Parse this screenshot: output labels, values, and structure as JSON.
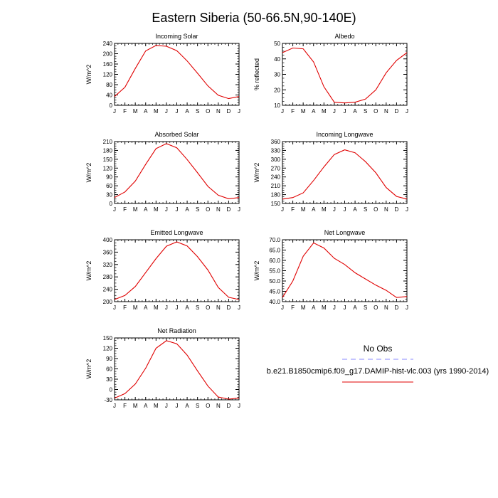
{
  "figure": {
    "title": "Eastern Siberia (50-66.5N,90-140E)"
  },
  "months": [
    "J",
    "F",
    "M",
    "A",
    "M",
    "J",
    "J",
    "A",
    "S",
    "O",
    "N",
    "D",
    "J"
  ],
  "chart_data": [
    {
      "type": "line",
      "title": "Incoming Solar",
      "ylabel": "W/m^2",
      "ylim": [
        0,
        240
      ],
      "yticks": [
        "0",
        "40",
        "80",
        "120",
        "160",
        "200",
        "240"
      ],
      "series": [
        {
          "values": [
            34,
            70,
            143,
            211,
            232,
            229,
            212,
            172,
            124,
            75,
            39,
            26,
            34
          ],
          "color": "#e00000"
        }
      ]
    },
    {
      "type": "line",
      "title": "Albedo",
      "ylabel": "% reflected",
      "ylim": [
        10,
        50
      ],
      "yticks": [
        "10",
        "20",
        "30",
        "40",
        "50"
      ],
      "series": [
        {
          "values": [
            44,
            47,
            46.5,
            38,
            22,
            12,
            11.5,
            12,
            14,
            20,
            31,
            39,
            44
          ],
          "color": "#e00000"
        }
      ]
    },
    {
      "type": "line",
      "title": "Absorbed Solar",
      "ylabel": "W/m^2",
      "ylim": [
        0,
        210
      ],
      "yticks": [
        "0",
        "30",
        "60",
        "90",
        "120",
        "150",
        "180",
        "210"
      ],
      "series": [
        {
          "values": [
            20,
            39,
            76,
            133,
            186,
            203,
            189,
            149,
            104,
            58,
            28,
            16,
            20
          ],
          "color": "#e00000"
        }
      ]
    },
    {
      "type": "line",
      "title": "Incoming Longwave",
      "ylabel": "W/m^2",
      "ylim": [
        150,
        360
      ],
      "yticks": [
        "150",
        "180",
        "210",
        "240",
        "270",
        "300",
        "330",
        "360"
      ],
      "series": [
        {
          "values": [
            165,
            170,
            186,
            228,
            274,
            316,
            332,
            322,
            292,
            254,
            204,
            174,
            165
          ],
          "color": "#e00000"
        }
      ]
    },
    {
      "type": "line",
      "title": "Emitted Longwave",
      "ylabel": "W/m^2",
      "ylim": [
        200,
        400
      ],
      "yticks": [
        "200",
        "240",
        "280",
        "320",
        "360",
        "400"
      ],
      "series": [
        {
          "values": [
            207,
            220,
            249,
            294,
            339,
            379,
            393,
            380,
            345,
            302,
            246,
            214,
            207
          ],
          "color": "#e00000"
        }
      ]
    },
    {
      "type": "line",
      "title": "Net Longwave",
      "ylabel": "W/m^2",
      "ylim": [
        40,
        70
      ],
      "yticks": [
        "40.0",
        "45.0",
        "50.0",
        "55.0",
        "60.0",
        "65.0",
        "70.0"
      ],
      "series": [
        {
          "values": [
            42,
            50,
            62,
            68.5,
            66,
            61,
            58,
            54,
            51,
            48,
            45.5,
            42,
            42.5
          ],
          "color": "#e00000"
        }
      ]
    },
    {
      "type": "line",
      "title": "Net Radiation",
      "ylabel": "W/m^2",
      "ylim": [
        -30,
        150
      ],
      "yticks": [
        "-30",
        "0",
        "30",
        "60",
        "90",
        "120",
        "150"
      ],
      "series": [
        {
          "values": [
            -25,
            -12,
            16,
            62,
            120,
            142,
            133,
            100,
            54,
            10,
            -22,
            -28,
            -25
          ],
          "color": "#e00000"
        }
      ]
    }
  ],
  "legend": {
    "obs_label": "No Obs",
    "obs_color": "#8888ff",
    "model_label": "b.e21.B1850cmip6.f09_g17.DAMIP-hist-vlc.003 (yrs 1990-2014)",
    "model_color": "#e00000"
  }
}
